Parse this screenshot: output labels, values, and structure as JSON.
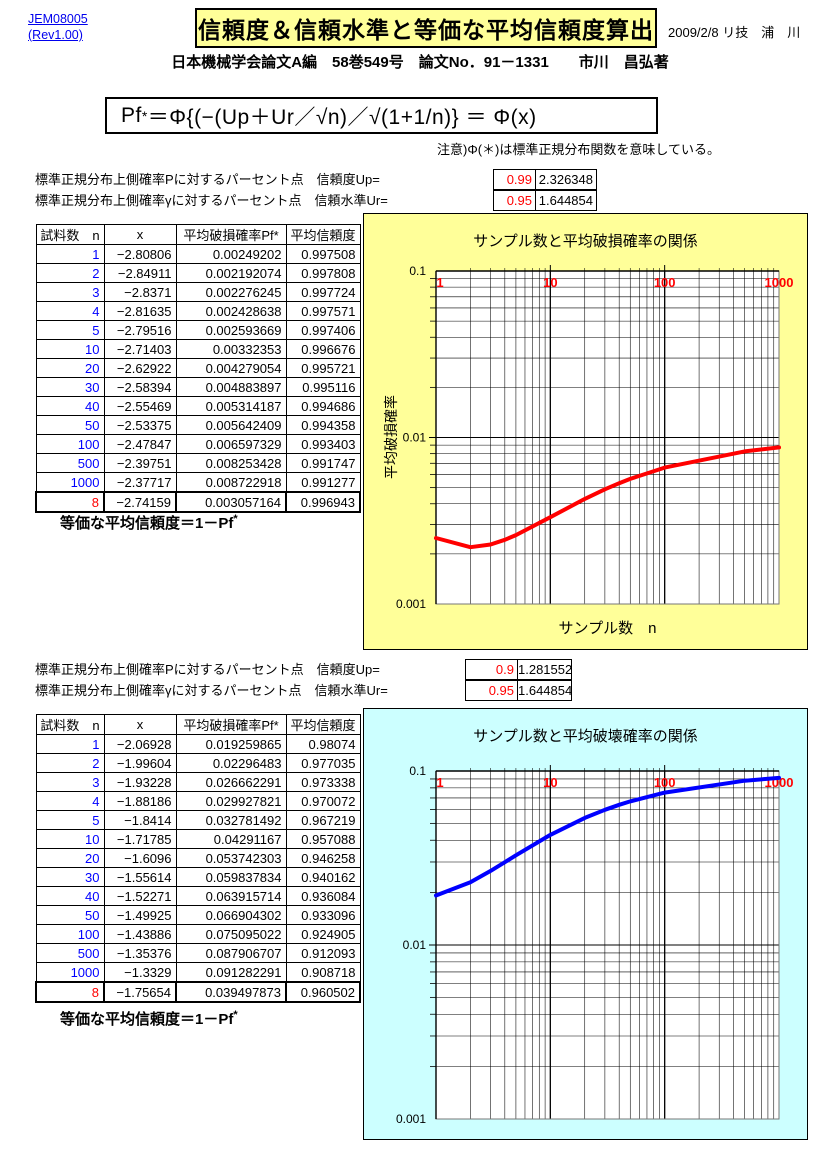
{
  "header": {
    "doc_id": "JEM08005",
    "revision": "(Rev1.00)",
    "title": "信頼度＆信頼水準と等価な平均信頼度算出",
    "date_author": "2009/2/8 リ技　浦　川",
    "subtitle": "日本機械学会論文A編　58巻549号　論文No．91－1331　　市川　昌弘著"
  },
  "formula": {
    "lhs": "Pf",
    "sup": "*",
    "rhs": "＝Φ{(−(Up＋Ur／√n)／√(1+1/n)} ＝ Φ(x)",
    "note": "注意)Φ(＊)は標準正規分布関数を意味している。"
  },
  "sections": [
    {
      "params": [
        {
          "label": "標準正規分布上側確率Pに対するパーセント点　信頼度Up=",
          "p": "0.99",
          "u": "2.326348"
        },
        {
          "label": "標準正規分布上側確率γに対するパーセント点　信頼水準Ur=",
          "p": "0.95",
          "u": "1.644854"
        }
      ],
      "table": {
        "headers": [
          "試料数　n",
          "x",
          "平均破損確率Pf*",
          "平均信頼度"
        ],
        "rows": [
          [
            "1",
            "−2.80806",
            "0.00249202",
            "0.997508"
          ],
          [
            "2",
            "−2.84911",
            "0.002192074",
            "0.997808"
          ],
          [
            "3",
            "−2.8371",
            "0.002276245",
            "0.997724"
          ],
          [
            "4",
            "−2.81635",
            "0.002428638",
            "0.997571"
          ],
          [
            "5",
            "−2.79516",
            "0.002593669",
            "0.997406"
          ],
          [
            "10",
            "−2.71403",
            "0.00332353",
            "0.996676"
          ],
          [
            "20",
            "−2.62922",
            "0.004279054",
            "0.995721"
          ],
          [
            "30",
            "−2.58394",
            "0.004883897",
            "0.995116"
          ],
          [
            "40",
            "−2.55469",
            "0.005314187",
            "0.994686"
          ],
          [
            "50",
            "−2.53375",
            "0.005642409",
            "0.994358"
          ],
          [
            "100",
            "−2.47847",
            "0.006597329",
            "0.993403"
          ],
          [
            "500",
            "−2.39751",
            "0.008253428",
            "0.991747"
          ],
          [
            "1000",
            "−2.37717",
            "0.008722918",
            "0.991277"
          ]
        ],
        "result_row": [
          "8",
          "−2.74159",
          "0.003057164",
          "0.996943"
        ]
      },
      "equiv_note": {
        "text": "等価な平均信頼度＝1－Pf",
        "sup": "*"
      }
    },
    {
      "params": [
        {
          "label": "標準正規分布上側確率Pに対するパーセント点　信頼度Up=",
          "p": "0.9",
          "u": "1.281552"
        },
        {
          "label": "標準正規分布上側確率γに対するパーセント点　信頼水準Ur=",
          "p": "0.95",
          "u": "1.644854"
        }
      ],
      "table": {
        "headers": [
          "試料数　n",
          "x",
          "平均破損確率Pf*",
          "平均信頼度"
        ],
        "rows": [
          [
            "1",
            "−2.06928",
            "0.019259865",
            "0.98074"
          ],
          [
            "2",
            "−1.99604",
            "0.02296483",
            "0.977035"
          ],
          [
            "3",
            "−1.93228",
            "0.026662291",
            "0.973338"
          ],
          [
            "4",
            "−1.88186",
            "0.029927821",
            "0.970072"
          ],
          [
            "5",
            "−1.8414",
            "0.032781492",
            "0.967219"
          ],
          [
            "10",
            "−1.71785",
            "0.04291167",
            "0.957088"
          ],
          [
            "20",
            "−1.6096",
            "0.053742303",
            "0.946258"
          ],
          [
            "30",
            "−1.55614",
            "0.059837834",
            "0.940162"
          ],
          [
            "40",
            "−1.52271",
            "0.063915714",
            "0.936084"
          ],
          [
            "50",
            "−1.49925",
            "0.066904302",
            "0.933096"
          ],
          [
            "100",
            "−1.43886",
            "0.075095022",
            "0.924905"
          ],
          [
            "500",
            "−1.35376",
            "0.087906707",
            "0.912093"
          ],
          [
            "1000",
            "−1.3329",
            "0.091282291",
            "0.908718"
          ]
        ],
        "result_row": [
          "8",
          "−1.75654",
          "0.039497873",
          "0.960502"
        ]
      },
      "equiv_note": {
        "text": "等価な平均信頼度＝1－Pf",
        "sup": "*"
      }
    }
  ],
  "chart_data": [
    {
      "type": "line",
      "title": "サンプル数と平均破損確率の関係",
      "xlabel": "サンプル数　n",
      "ylabel": "平均破損確率",
      "x": [
        1,
        2,
        3,
        4,
        5,
        10,
        20,
        30,
        40,
        50,
        100,
        500,
        1000
      ],
      "series": [
        {
          "name": "平均破損確率Pf*",
          "values": [
            0.00249202,
            0.002192074,
            0.002276245,
            0.002428638,
            0.002593669,
            0.00332353,
            0.004279054,
            0.004883897,
            0.005314187,
            0.005642409,
            0.006597329,
            0.008253428,
            0.008722918
          ]
        }
      ],
      "xscale": "log",
      "yscale": "log",
      "xlim": [
        1,
        1000
      ],
      "ylim": [
        0.001,
        0.1
      ],
      "x_tick_labels": [
        "1",
        "10",
        "100",
        "1000"
      ],
      "y_tick_labels": [
        "0.1",
        "0.01",
        "0.001"
      ],
      "grid": true,
      "legend": "none",
      "line_color": "#FF0000",
      "bg_color": "#FFFF99",
      "tick_label_color": "#FF0000"
    },
    {
      "type": "line",
      "title": "サンプル数と平均破壊確率の関係",
      "xlabel": "",
      "ylabel": "",
      "x": [
        1,
        2,
        3,
        4,
        5,
        10,
        20,
        30,
        40,
        50,
        100,
        500,
        1000
      ],
      "series": [
        {
          "name": "平均破損確率Pf*",
          "values": [
            0.019259865,
            0.02296483,
            0.026662291,
            0.029927821,
            0.032781492,
            0.04291167,
            0.053742303,
            0.059837834,
            0.063915714,
            0.066904302,
            0.075095022,
            0.087906707,
            0.091282291
          ]
        }
      ],
      "xscale": "log",
      "yscale": "log",
      "xlim": [
        1,
        1000
      ],
      "ylim": [
        0.001,
        0.1
      ],
      "x_tick_labels": [
        "1",
        "10",
        "100",
        "1000"
      ],
      "y_tick_labels": [
        "0.1",
        "0.01",
        "0.001"
      ],
      "grid": true,
      "legend": "none",
      "line_color": "#0000FF",
      "bg_color": "#CCFFFF",
      "tick_label_color": "#FF0000"
    }
  ]
}
